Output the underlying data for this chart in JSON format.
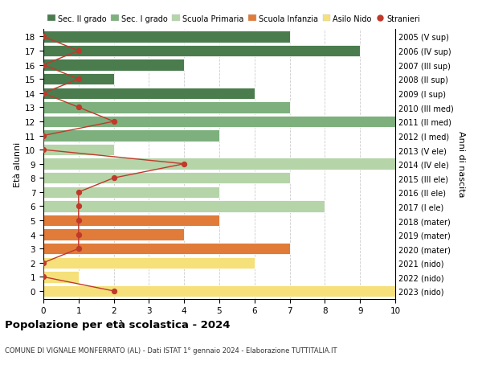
{
  "ages": [
    18,
    17,
    16,
    15,
    14,
    13,
    12,
    11,
    10,
    9,
    8,
    7,
    6,
    5,
    4,
    3,
    2,
    1,
    0
  ],
  "right_labels": [
    "2005 (V sup)",
    "2006 (IV sup)",
    "2007 (III sup)",
    "2008 (II sup)",
    "2009 (I sup)",
    "2010 (III med)",
    "2011 (II med)",
    "2012 (I med)",
    "2013 (V ele)",
    "2014 (IV ele)",
    "2015 (III ele)",
    "2016 (II ele)",
    "2017 (I ele)",
    "2018 (mater)",
    "2019 (mater)",
    "2020 (mater)",
    "2021 (nido)",
    "2022 (nido)",
    "2023 (nido)"
  ],
  "bar_values": [
    7,
    9,
    4,
    2,
    6,
    7,
    10,
    5,
    2,
    10,
    7,
    5,
    8,
    5,
    4,
    7,
    6,
    1,
    10
  ],
  "bar_colors": [
    "#4a7c4e",
    "#4a7c4e",
    "#4a7c4e",
    "#4a7c4e",
    "#4a7c4e",
    "#7db07d",
    "#7db07d",
    "#7db07d",
    "#b5d4a8",
    "#b5d4a8",
    "#b5d4a8",
    "#b5d4a8",
    "#b5d4a8",
    "#e07b39",
    "#e07b39",
    "#e07b39",
    "#f5e07a",
    "#f5e07a",
    "#f5e07a"
  ],
  "stranieri_values": [
    0,
    1,
    0,
    1,
    0,
    1,
    2,
    0,
    0,
    4,
    2,
    1,
    1,
    1,
    1,
    1,
    0,
    0,
    2
  ],
  "legend_labels": [
    "Sec. II grado",
    "Sec. I grado",
    "Scuola Primaria",
    "Scuola Infanzia",
    "Asilo Nido",
    "Stranieri"
  ],
  "legend_colors": [
    "#4a7c4e",
    "#7db07d",
    "#b5d4a8",
    "#e07b39",
    "#f5e07a",
    "#c0392b"
  ],
  "ylabel": "Età alunni",
  "right_ylabel": "Anni di nascita",
  "title": "Popolazione per età scolastica - 2024",
  "subtitle": "COMUNE DI VIGNALE MONFERRATO (AL) - Dati ISTAT 1° gennaio 2024 - Elaborazione TUTTITALIA.IT",
  "xlim": [
    0,
    10
  ],
  "background_color": "#ffffff",
  "grid_color": "#cccccc",
  "stranieri_color": "#c0392b",
  "bar_edge_color": "#ffffff"
}
